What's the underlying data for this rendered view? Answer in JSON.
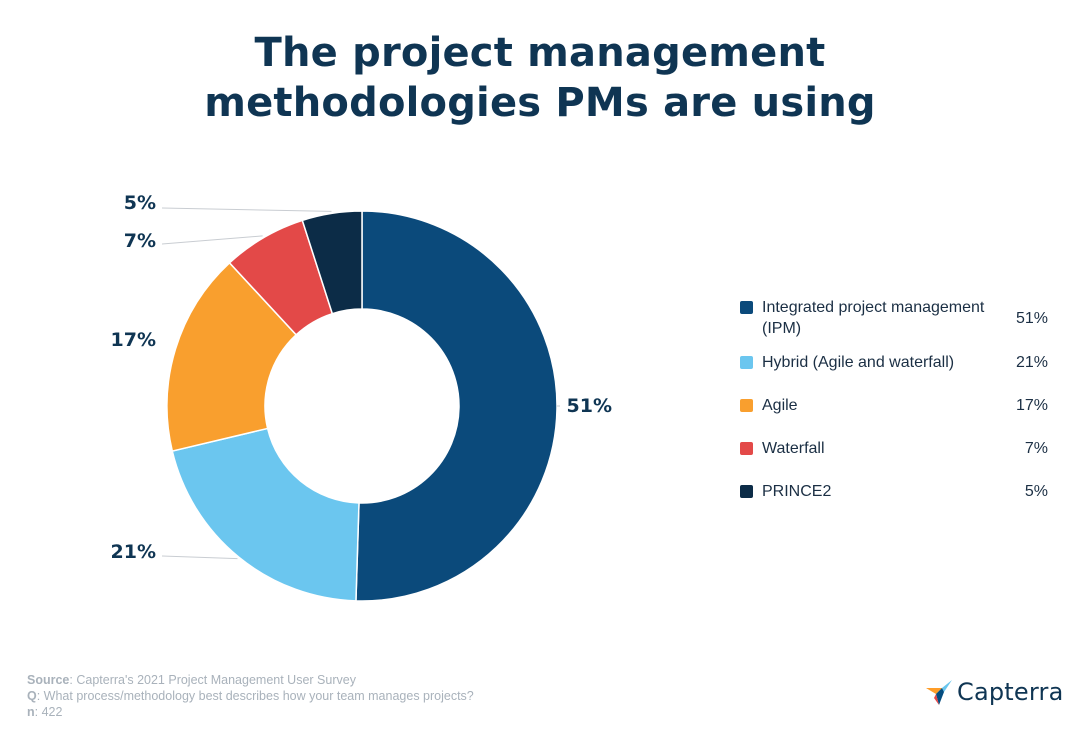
{
  "title": {
    "line1": "The project management",
    "line2": "methodologies PMs are using"
  },
  "chart_data": {
    "type": "pie",
    "donut": true,
    "categories": [
      "Integrated project management (IPM)",
      "Hybrid (Agile and waterfall)",
      "Agile",
      "Waterfall",
      "PRINCE2"
    ],
    "values": [
      51,
      21,
      17,
      7,
      5
    ],
    "labels": [
      "51%",
      "21%",
      "17%",
      "7%",
      "5%"
    ],
    "colors": [
      "#0b4a7b",
      "#6bc6ef",
      "#f99f2e",
      "#e34948",
      "#0c2c47"
    ],
    "legend_position": "right"
  },
  "legend": [
    {
      "label": "Integrated project management (IPM)",
      "value": "51%",
      "color": "#0b4a7b"
    },
    {
      "label": "Hybrid (Agile and waterfall)",
      "value": "21%",
      "color": "#6bc6ef"
    },
    {
      "label": "Agile",
      "value": "17%",
      "color": "#f99f2e"
    },
    {
      "label": "Waterfall",
      "value": "7%",
      "color": "#e34948"
    },
    {
      "label": "PRINCE2",
      "value": "5%",
      "color": "#0c2c47"
    }
  ],
  "footer": {
    "source_label": "Source",
    "source_text": ": Capterra's 2021 Project Management User Survey",
    "q_label": "Q",
    "q_text": ": What process/methodology best describes how your team manages projects?",
    "n_label": "n",
    "n_text": ": 422"
  },
  "brand": {
    "name": "Capterra",
    "icon": "capterra-logo-icon"
  }
}
